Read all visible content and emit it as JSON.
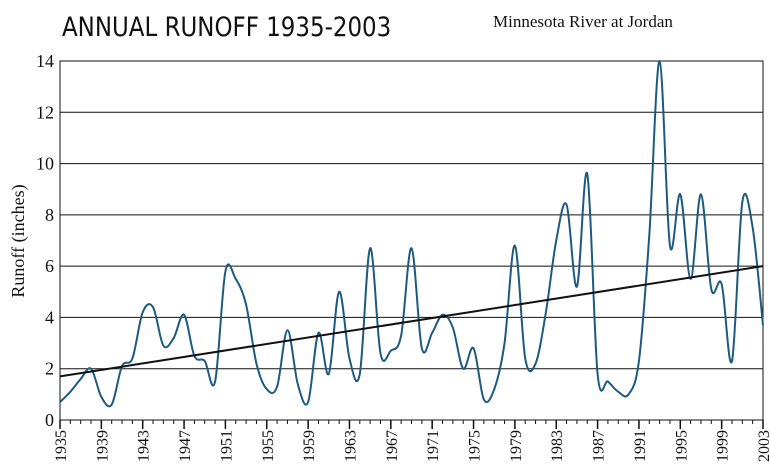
{
  "chart_data": {
    "type": "line",
    "title": "ANNUAL RUNOFF 1935-2003",
    "subtitle": "Minnesota River at Jordan",
    "y_label": "Runoff  (inches)",
    "x": [
      1935,
      1936,
      1937,
      1938,
      1939,
      1940,
      1941,
      1942,
      1943,
      1944,
      1945,
      1946,
      1947,
      1948,
      1949,
      1950,
      1951,
      1952,
      1953,
      1954,
      1955,
      1956,
      1957,
      1958,
      1959,
      1960,
      1961,
      1962,
      1963,
      1964,
      1965,
      1966,
      1967,
      1968,
      1969,
      1970,
      1971,
      1972,
      1973,
      1974,
      1975,
      1976,
      1977,
      1978,
      1979,
      1980,
      1981,
      1982,
      1983,
      1984,
      1985,
      1986,
      1987,
      1988,
      1989,
      1990,
      1991,
      1992,
      1993,
      1994,
      1995,
      1996,
      1997,
      1998,
      1999,
      2000,
      2001,
      2002,
      2003
    ],
    "series": [
      {
        "color": "#1d5a80",
        "values": [
          0.7,
          1.1,
          1.6,
          2.0,
          0.9,
          0.6,
          2.1,
          2.4,
          4.2,
          4.4,
          2.9,
          3.2,
          4.1,
          2.5,
          2.3,
          1.5,
          5.8,
          5.5,
          4.5,
          2.2,
          1.2,
          1.3,
          3.5,
          1.4,
          0.7,
          3.4,
          1.8,
          5.0,
          2.4,
          1.8,
          6.7,
          2.6,
          2.7,
          3.3,
          6.7,
          2.8,
          3.4,
          4.1,
          3.6,
          2.0,
          2.8,
          0.8,
          1.2,
          3.0,
          6.8,
          2.4,
          2.2,
          4.2,
          7.0,
          8.4,
          5.2,
          9.6,
          1.8,
          1.5,
          1.1,
          1.0,
          2.3,
          7.2,
          14.0,
          6.8,
          8.8,
          5.5,
          8.8,
          5.1,
          5.3,
          2.3,
          8.5,
          7.5,
          3.7
        ]
      }
    ],
    "trendline": {
      "x": [
        1935,
        2003
      ],
      "values": [
        1.7,
        6.0
      ],
      "color": "#111111"
    },
    "xlim": [
      1935,
      2003
    ],
    "xticks": [
      1935,
      1939,
      1943,
      1947,
      1951,
      1955,
      1959,
      1963,
      1967,
      1971,
      1975,
      1979,
      1983,
      1987,
      1991,
      1995,
      1999,
      2003
    ],
    "ylim": [
      0,
      14
    ],
    "yticks": [
      0,
      2,
      4,
      6,
      8,
      10,
      12,
      14
    ],
    "grid": true
  }
}
